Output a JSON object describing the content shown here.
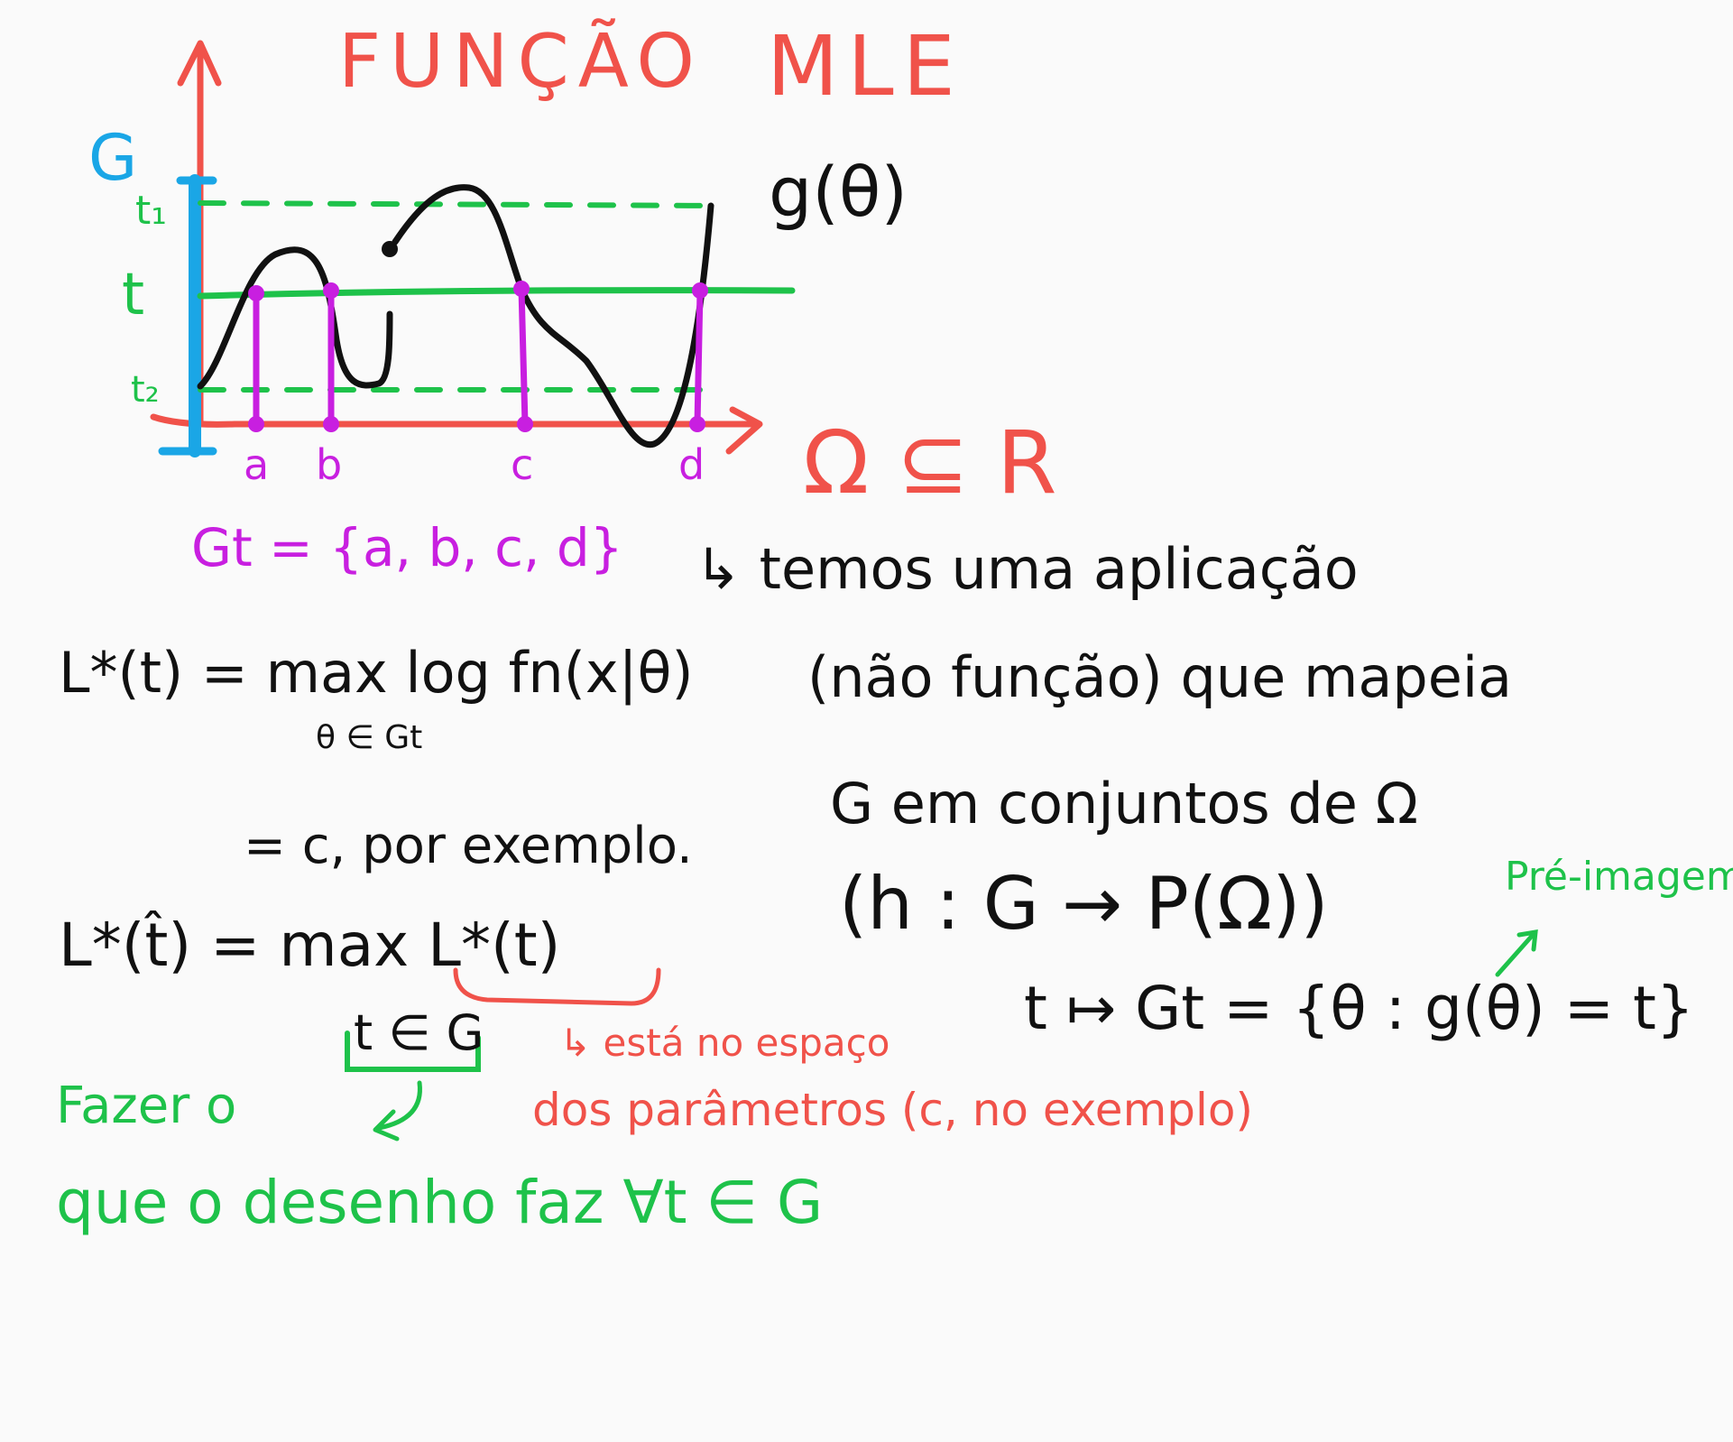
{
  "colors": {
    "red": "#f0524a",
    "black": "#111111",
    "green": "#1ec24a",
    "magenta": "#c81fe0",
    "blue": "#1aa6e6",
    "background": "#fafafa"
  },
  "title": {
    "part1": "FUNÇÃO",
    "part2": "MLE"
  },
  "graph": {
    "y_axis_label": "G",
    "curve_label": "g(θ)",
    "t1_label": "t₁",
    "t_label": "t",
    "t2_label": "t₂",
    "points": [
      "a",
      "b",
      "c",
      "d"
    ]
  },
  "set_def": "Gt = {a, b, c, d}",
  "omega": "Ω ⊆ R",
  "explanation": {
    "line1": "↳ temos uma aplicação",
    "line2": "(não função) que mapeia",
    "line3": "G em conjuntos de Ω",
    "line4": "(h : G → P(Ω))",
    "line5": "t ↦ Gt = {θ : g(θ) = t}",
    "preimage": "Pré-imagem"
  },
  "formulas": {
    "lstar_t": "L*(t) = max log fn(x|θ)",
    "lstar_t_sub": "θ ∈ Gt",
    "equals_c": "= c, por exemplo.",
    "lstar_hat": "L*(t̂) = max L*(t)",
    "lstar_hat_sub": "t ∈ G"
  },
  "notes": {
    "red_line1": "↳ está no espaço",
    "red_line2": "dos parâmetros (c, no exemplo)",
    "green_line1": "Fazer o",
    "green_line2": "que o desenho faz ∀t ∈ G"
  }
}
